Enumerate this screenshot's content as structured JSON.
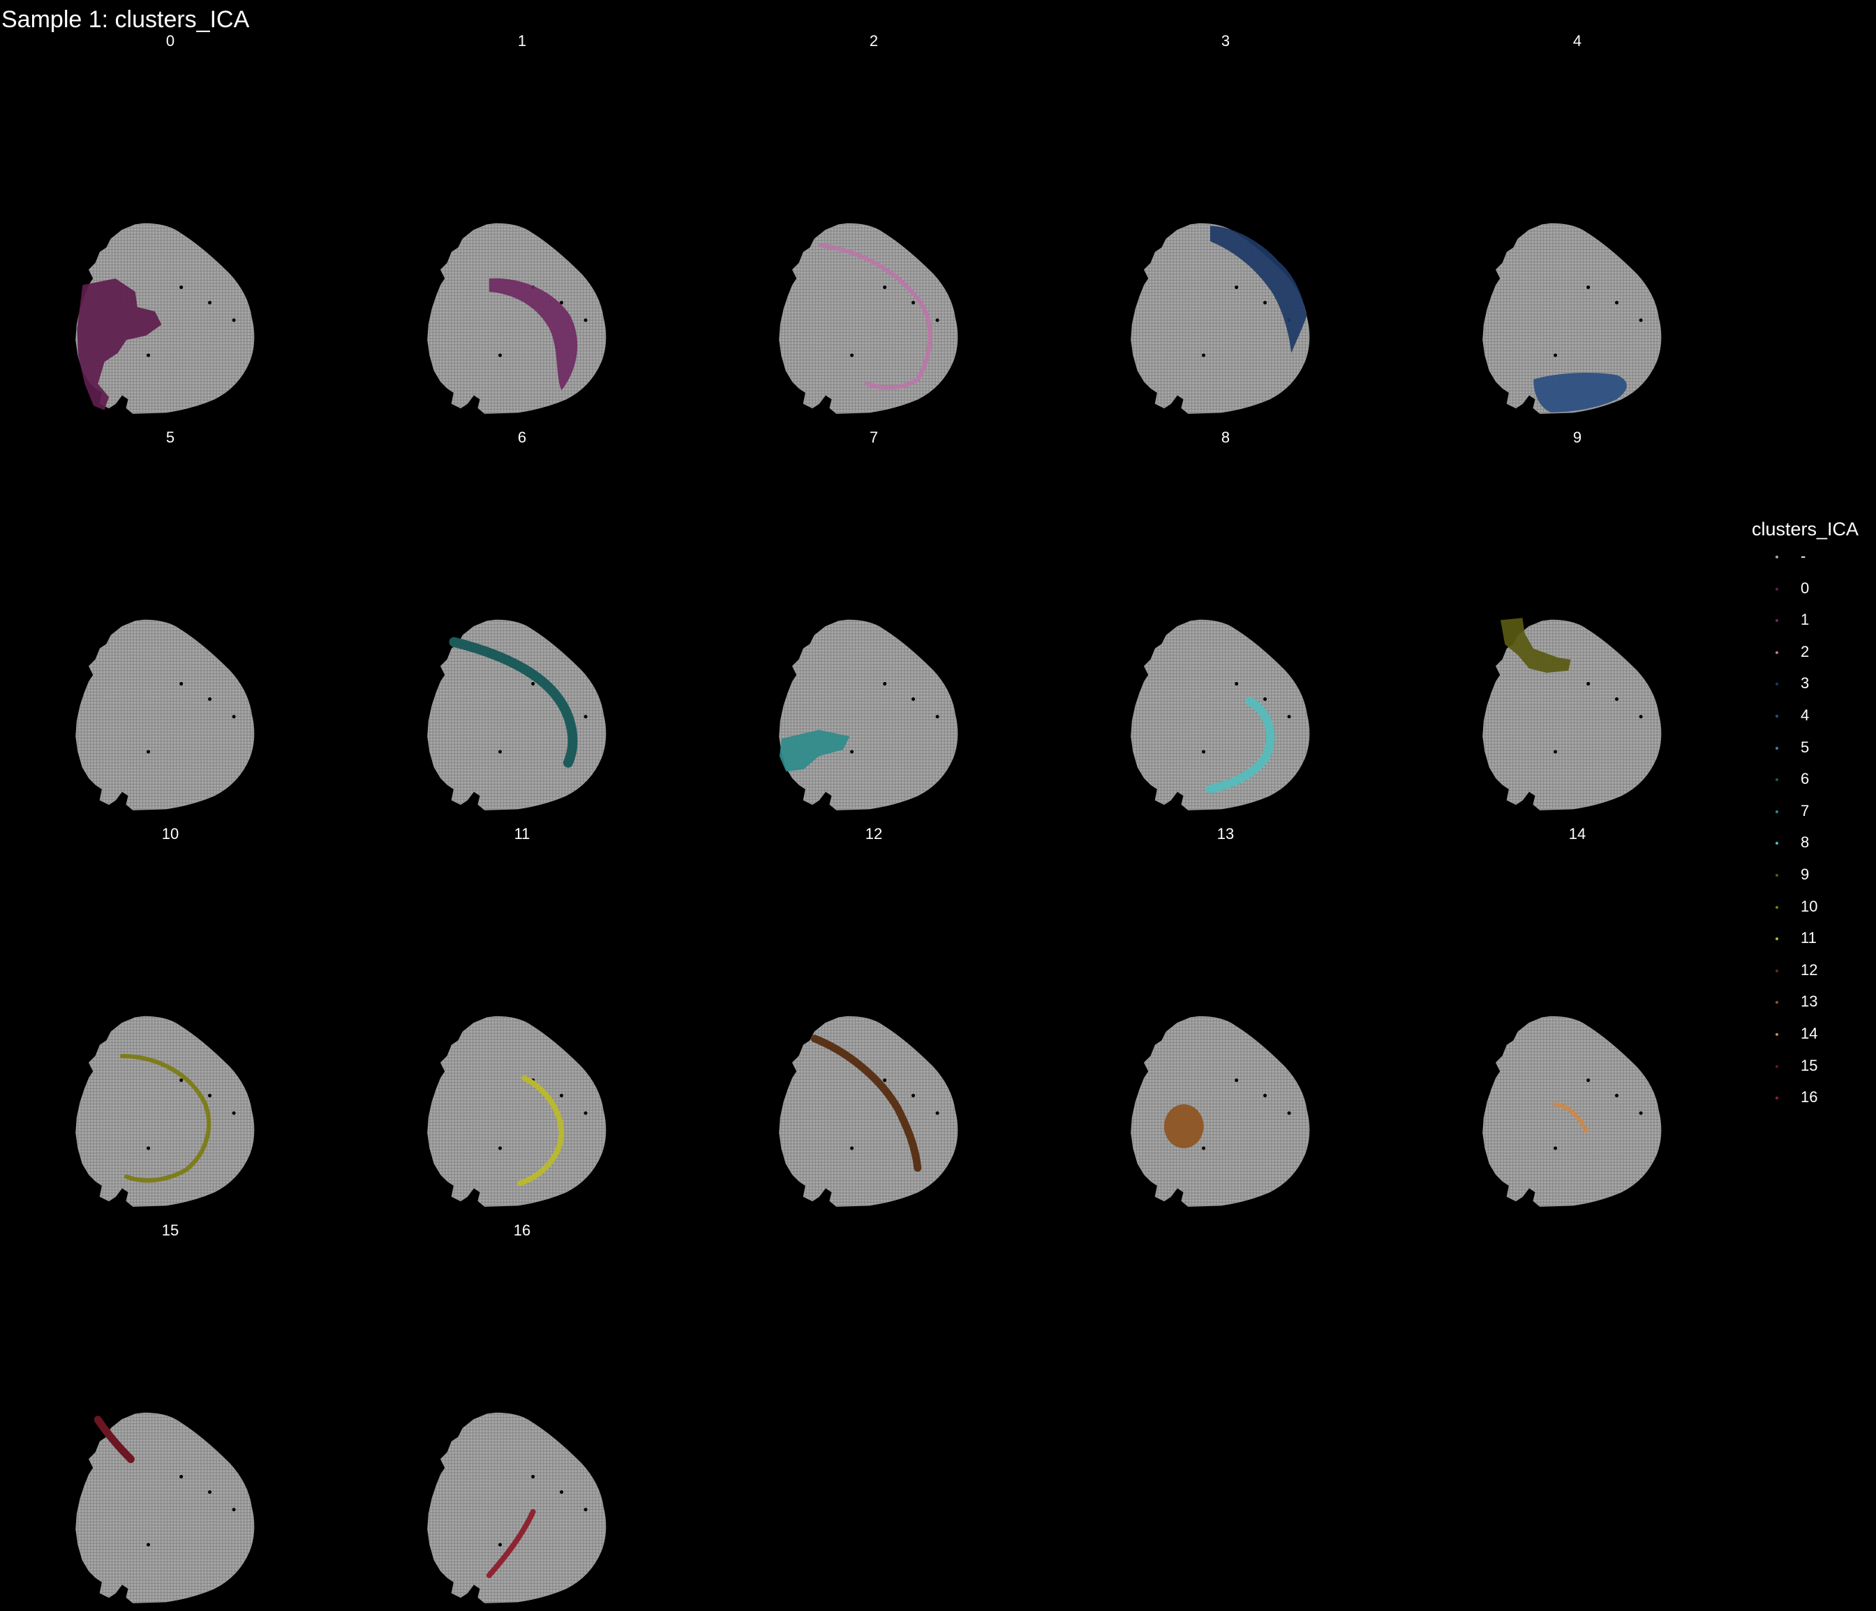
{
  "page": {
    "title": "Sample 1: clusters_ICA",
    "background": "#000000"
  },
  "tissue": {
    "spot_color": "#a8a8a8",
    "description_shape": "mouse brain coronal half-section"
  },
  "panels": [
    {
      "label": "0",
      "region": "cortex_left_lateral",
      "color": "#5e1d4e"
    },
    {
      "label": "1",
      "region": "arc_inner_mid",
      "color": "#6f2a62"
    },
    {
      "label": "2",
      "region": "thin_arc_outer",
      "color": "#b77aa6"
    },
    {
      "label": "3",
      "region": "top_right_rim",
      "color": "#1d3a66"
    },
    {
      "label": "4",
      "region": "bottom_band",
      "color": "#2b4f82"
    },
    {
      "label": "5",
      "region": "scattered",
      "color": "#4f78b8"
    },
    {
      "label": "6",
      "region": "arc_upper_thick",
      "color": "#1d5b5b"
    },
    {
      "label": "7",
      "region": "bottom_left_patch",
      "color": "#2f8b8b"
    },
    {
      "label": "8",
      "region": "arc_lower_right",
      "color": "#5ab9b9"
    },
    {
      "label": "9",
      "region": "top_left_band",
      "color": "#5a5a12"
    },
    {
      "label": "10",
      "region": "thin_arc_scatter",
      "color": "#7d7d1c"
    },
    {
      "label": "11",
      "region": "arc_right_yellow",
      "color": "#b8b832"
    },
    {
      "label": "12",
      "region": "diagonal_band",
      "color": "#5a3218"
    },
    {
      "label": "13",
      "region": "round_blob",
      "color": "#8e5420"
    },
    {
      "label": "14",
      "region": "short_arc_orange",
      "color": "#c88a52"
    },
    {
      "label": "15",
      "region": "top_left_short",
      "color": "#6b1622"
    },
    {
      "label": "16",
      "region": "mid_diagonal",
      "color": "#8e2432"
    }
  ],
  "legend": {
    "title": "clusters_ICA",
    "items": [
      {
        "label": "-",
        "color": "#a8a8a8"
      },
      {
        "label": "0",
        "color": "#5e1d4e"
      },
      {
        "label": "1",
        "color": "#6f2a62"
      },
      {
        "label": "2",
        "color": "#b77aa6"
      },
      {
        "label": "3",
        "color": "#1d3a66"
      },
      {
        "label": "4",
        "color": "#2b4f82"
      },
      {
        "label": "5",
        "color": "#4f78b8"
      },
      {
        "label": "6",
        "color": "#1d5b5b"
      },
      {
        "label": "7",
        "color": "#2f8b8b"
      },
      {
        "label": "8",
        "color": "#5ab9b9"
      },
      {
        "label": "9",
        "color": "#5a5a12"
      },
      {
        "label": "10",
        "color": "#7d7d1c"
      },
      {
        "label": "11",
        "color": "#b8b832"
      },
      {
        "label": "12",
        "color": "#5a3218"
      },
      {
        "label": "13",
        "color": "#8e5420"
      },
      {
        "label": "14",
        "color": "#c88a52"
      },
      {
        "label": "15",
        "color": "#6b1622"
      },
      {
        "label": "16",
        "color": "#8e2432"
      }
    ]
  }
}
